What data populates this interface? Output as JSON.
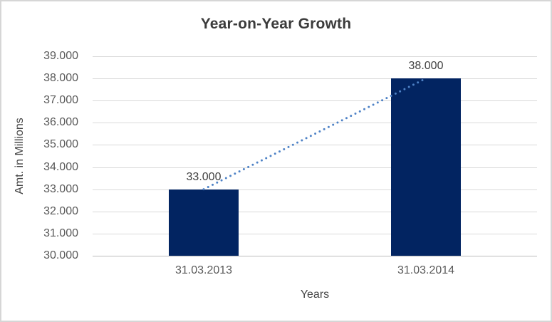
{
  "chart_data": {
    "type": "bar",
    "title": "Year-on-Year Growth",
    "xlabel": "Years",
    "ylabel": "Amt. in Millions",
    "categories": [
      "31.03.2013",
      "31.03.2014"
    ],
    "values": [
      33000,
      38000
    ],
    "value_labels": [
      "33.000",
      "38.000"
    ],
    "ylim": [
      30000,
      39000
    ],
    "ytick_step": 1000,
    "ytick_labels": [
      "30.000",
      "31.000",
      "32.000",
      "33.000",
      "34.000",
      "35.000",
      "36.000",
      "37.000",
      "38.000",
      "39.000"
    ],
    "grid": true,
    "legend": false,
    "trendline": {
      "style": "dotted",
      "from": "31.03.2013",
      "to": "31.03.2014"
    },
    "colors": {
      "bar": "#022461",
      "trendline": "#4e82c6",
      "gridline": "#d9d9d9",
      "axis_line": "#bcbcbc",
      "title_text": "#3b3b3b",
      "tick_text": "#595959",
      "value_label_text": "#404040",
      "border": "#d6d6d6",
      "background": "#ffffff"
    }
  }
}
